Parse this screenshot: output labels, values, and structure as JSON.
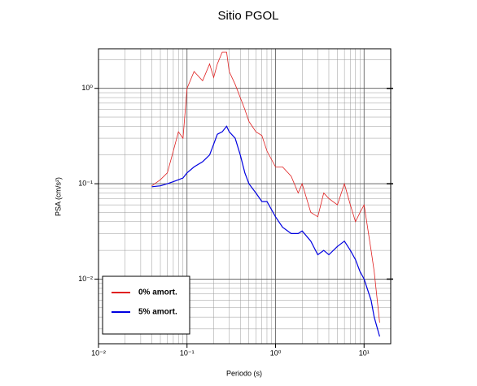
{
  "chart_data": {
    "type": "line",
    "title": "Sitio PGOL",
    "x_label": "Periodo (s)",
    "y_label": "PSA (cm/s²)",
    "x_scale": "log",
    "y_scale": "log",
    "grid": true,
    "legend_position": "lower left",
    "xlim": [
      0.01,
      20
    ],
    "ylim": [
      0.0021,
      2.6
    ],
    "xticks": [
      {
        "value": 0.01,
        "label": "10⁻²"
      },
      {
        "value": 0.1,
        "label": "10⁻¹"
      },
      {
        "value": 1,
        "label": "10⁰"
      },
      {
        "value": 10,
        "label": "10¹"
      }
    ],
    "yticks": [
      {
        "value": 0.01,
        "label": "10⁻²"
      },
      {
        "value": 0.1,
        "label": "10⁻¹"
      },
      {
        "value": 1,
        "label": "10⁰"
      }
    ],
    "x": [
      0.04,
      0.05,
      0.06,
      0.07,
      0.08,
      0.09,
      0.1,
      0.12,
      0.15,
      0.18,
      0.2,
      0.22,
      0.25,
      0.28,
      0.3,
      0.35,
      0.4,
      0.45,
      0.5,
      0.6,
      0.7,
      0.8,
      1.0,
      1.2,
      1.5,
      1.8,
      2.0,
      2.5,
      3.0,
      3.5,
      4.0,
      5.0,
      6.0,
      7.0,
      8.0,
      9.0,
      10,
      12,
      13,
      15
    ],
    "series": [
      {
        "name": "0% amort.",
        "color": "#e02020",
        "values": [
          0.095,
          0.11,
          0.13,
          0.22,
          0.35,
          0.3,
          1.0,
          1.5,
          1.2,
          1.8,
          1.3,
          1.8,
          2.4,
          2.4,
          1.5,
          1.1,
          0.8,
          0.6,
          0.45,
          0.35,
          0.32,
          0.22,
          0.15,
          0.15,
          0.12,
          0.08,
          0.1,
          0.05,
          0.045,
          0.08,
          0.07,
          0.06,
          0.1,
          0.06,
          0.04,
          0.05,
          0.06,
          0.02,
          0.012,
          0.0035
        ]
      },
      {
        "name": "5% amort.",
        "color": "#0000e0",
        "values": [
          0.093,
          0.095,
          0.1,
          0.105,
          0.11,
          0.115,
          0.13,
          0.15,
          0.17,
          0.2,
          0.26,
          0.33,
          0.35,
          0.4,
          0.35,
          0.3,
          0.2,
          0.13,
          0.1,
          0.08,
          0.065,
          0.065,
          0.045,
          0.035,
          0.03,
          0.03,
          0.032,
          0.025,
          0.018,
          0.02,
          0.018,
          0.022,
          0.025,
          0.02,
          0.016,
          0.012,
          0.01,
          0.006,
          0.004,
          0.0025
        ]
      }
    ]
  }
}
